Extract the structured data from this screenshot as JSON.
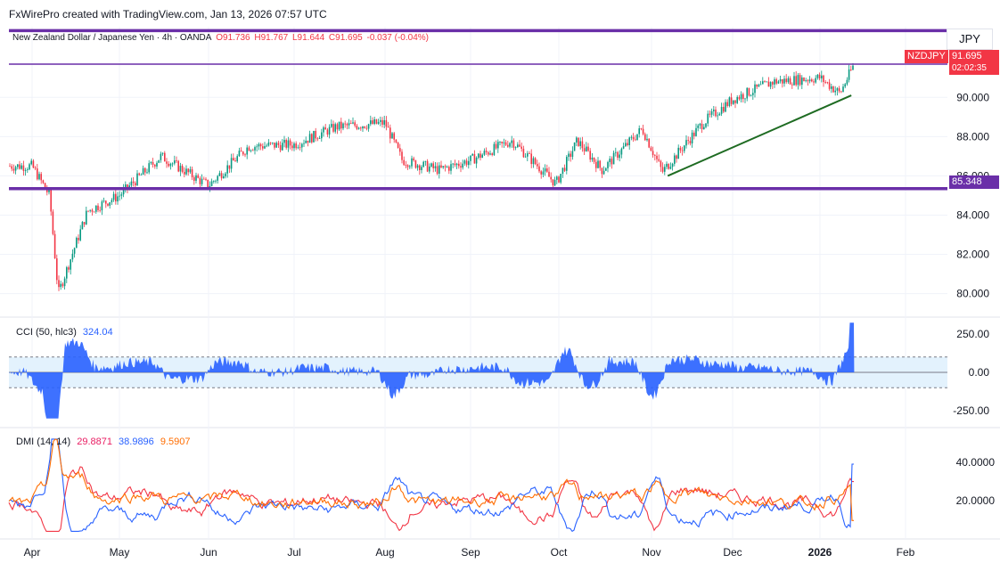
{
  "header": {
    "attribution": "FxWirePro created with TradingView.com, Jan 13, 2026 07:57 UTC"
  },
  "symbol_line": {
    "name": "New Zealand Dollar / Japanese Yen · 4h · OANDA",
    "open": "O91.736",
    "high": "H91.767",
    "low": "L91.644",
    "close": "C91.695",
    "change": "-0.037 (-0.04%)"
  },
  "currency_button": "JPY",
  "price_tags": {
    "ticker": "NZDJPY",
    "last_price": "91.695",
    "countdown": "02:02:35",
    "support_level": "85.348"
  },
  "indicators": {
    "cci": {
      "label": "CCI (50, hlc3)",
      "value": "324.04"
    },
    "dmi": {
      "label": "DMI (14, 14)",
      "plus_di": "29.8871",
      "minus_di": "38.9896",
      "adx": "9.5907"
    }
  },
  "colors": {
    "up": "#089981",
    "down": "#f23645",
    "level_line": "#6a2fa8",
    "trend_line": "#1e6b22",
    "cci_fill": "#2962ff",
    "cci_band": "#e3f2fd",
    "dmi_plus": "#f23645",
    "dmi_minus": "#2962ff",
    "dmi_adx": "#ff6d00"
  },
  "chart_data": [
    {
      "type": "candlestick",
      "title": "New Zealand Dollar / Japanese Yen · 4h · OANDA",
      "x_tick_labels": [
        "Apr",
        "May",
        "Jun",
        "Jul",
        "Aug",
        "Sep",
        "Oct",
        "Nov",
        "Dec",
        "2026",
        "Feb"
      ],
      "y_tick_labels": [
        "80.000",
        "82.000",
        "84.000",
        "86.000",
        "88.000",
        "90.000"
      ],
      "ylim": [
        78.8,
        93.6
      ],
      "approx_close_path": {
        "x": [
          "Apr 1",
          "Apr 7",
          "Apr 10",
          "Apr 20",
          "May 1",
          "May 15",
          "Jun 1",
          "Jun 15",
          "Jul 1",
          "Jul 15",
          "Jul 31",
          "Aug 7",
          "Aug 20",
          "Sep 1",
          "Sep 15",
          "Sep 30",
          "Oct 7",
          "Oct 15",
          "Oct 28",
          "Nov 5",
          "Nov 20",
          "Dec 1",
          "Dec 15",
          "Jan 1",
          "Jan 8",
          "Jan 13"
        ],
        "y": [
          86.5,
          85.0,
          80.0,
          84.2,
          85.0,
          87.0,
          85.5,
          87.5,
          87.6,
          88.5,
          88.7,
          86.8,
          86.3,
          86.8,
          87.8,
          85.6,
          87.8,
          86.3,
          88.4,
          86.2,
          88.7,
          89.9,
          90.8,
          91.0,
          90.2,
          91.695
        ]
      },
      "horizontal_levels": [
        85.348,
        91.695,
        93.4
      ],
      "trend_line": {
        "from": [
          "Nov 7",
          86.0
        ],
        "to": [
          "Jan 12",
          90.1
        ]
      }
    },
    {
      "type": "area",
      "title": "CCI (50, hlc3)",
      "y_tick_labels": [
        "250.00",
        "0.00",
        "-250.00"
      ],
      "band": [
        -100,
        100
      ],
      "last_value": 324.04
    },
    {
      "type": "line",
      "title": "DMI (14, 14)",
      "y_tick_labels": [
        "40.0000",
        "20.0000"
      ],
      "series": [
        {
          "name": "+DI",
          "last": 29.8871
        },
        {
          "name": "-DI",
          "last": 38.9896
        },
        {
          "name": "ADX",
          "last": 9.5907
        }
      ]
    }
  ]
}
